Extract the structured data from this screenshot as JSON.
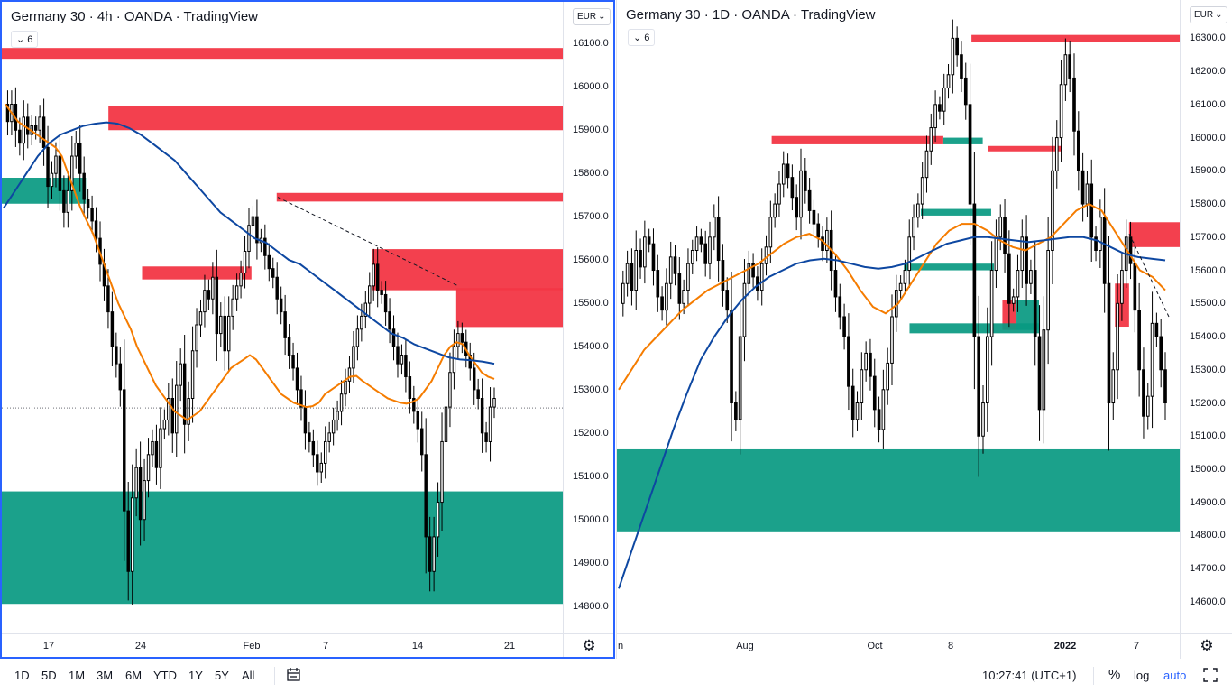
{
  "left_chart": {
    "title": "Germany 30 · 4h · OANDA · TradingView",
    "legend_count": "6",
    "currency": "EUR",
    "price_ticks": [
      "16100.0",
      "16000.0",
      "15900.0",
      "15800.0",
      "15700.0",
      "15600.0",
      "15500.0",
      "15400.0",
      "15300.0",
      "15200.0",
      "15100.0",
      "15000.0",
      "14900.0",
      "14800.0"
    ],
    "time_ticks": [
      "17",
      "24",
      "Feb",
      "7",
      "14",
      "21"
    ],
    "settings_icon": "gear-icon",
    "chart_data": {
      "type": "candlestick",
      "ylim": [
        14770,
        16130
      ],
      "close_path": [
        15960,
        15920,
        15960,
        15900,
        15870,
        15930,
        15890,
        15910,
        15900,
        15930,
        15860,
        15770,
        15800,
        15840,
        15760,
        15710,
        15760,
        15840,
        15870,
        15800,
        15740,
        15720,
        15690,
        15650,
        15590,
        15540,
        15480,
        15400,
        15360,
        15300,
        15020,
        14880,
        15050,
        15120,
        15000,
        15090,
        15150,
        15180,
        15120,
        15210,
        15230,
        15280,
        15200,
        15310,
        15360,
        15220,
        15280,
        15390,
        15450,
        15480,
        15530,
        15510,
        15560,
        15430,
        15470,
        15390,
        15470,
        15510,
        15540,
        15570,
        15620,
        15680,
        15700,
        15640,
        15650,
        15610,
        15580,
        15560,
        15510,
        15480,
        15420,
        15380,
        15350,
        15300,
        15260,
        15200,
        15180,
        15150,
        15110,
        15130,
        15180,
        15200,
        15230,
        15250,
        15290,
        15320,
        15350,
        15400,
        15440,
        15470,
        15500,
        15540,
        15590,
        15530,
        15520,
        15480,
        15440,
        15400,
        15360,
        15380,
        15330,
        15280,
        15250,
        15210,
        15150,
        14960,
        14880,
        14960,
        15040,
        15180,
        15260,
        15340,
        15400,
        15430,
        15410,
        15380,
        15350,
        15300,
        15280,
        15200,
        15180,
        15260,
        15280
      ],
      "ema_orange": [
        15960,
        15940,
        15920,
        15910,
        15900,
        15890,
        15880,
        15870,
        15860,
        15840,
        15800,
        15760,
        15720,
        15690,
        15660,
        15620,
        15580,
        15540,
        15500,
        15470,
        15440,
        15400,
        15370,
        15340,
        15310,
        15290,
        15270,
        15250,
        15240,
        15230,
        15240,
        15250,
        15270,
        15290,
        15310,
        15330,
        15350,
        15360,
        15370,
        15380,
        15370,
        15350,
        15330,
        15310,
        15290,
        15280,
        15270,
        15265,
        15260,
        15262,
        15270,
        15290,
        15300,
        15310,
        15320,
        15330,
        15332,
        15320,
        15310,
        15300,
        15290,
        15280,
        15275,
        15270,
        15268,
        15272,
        15280,
        15300,
        15320,
        15350,
        15380,
        15400,
        15410,
        15405,
        15380,
        15360,
        15340,
        15330,
        15325
      ],
      "ema_blue": [
        15720,
        15760,
        15800,
        15840,
        15870,
        15890,
        15900,
        15910,
        15915,
        15918,
        15915,
        15905,
        15890,
        15870,
        15850,
        15830,
        15800,
        15770,
        15740,
        15710,
        15690,
        15670,
        15650,
        15640,
        15620,
        15600,
        15590,
        15570,
        15550,
        15530,
        15510,
        15490,
        15470,
        15450,
        15430,
        15420,
        15405,
        15395,
        15385,
        15375,
        15370,
        15368,
        15365,
        15360
      ],
      "zones": [
        {
          "kind": "supply",
          "from": 16090,
          "to": 16065,
          "start": 0.0
        },
        {
          "kind": "supply",
          "from": 15955,
          "to": 15900,
          "start": 0.19
        },
        {
          "kind": "demand",
          "from": 15790,
          "to": 15730,
          "start": 0.0,
          "end": 0.15
        },
        {
          "kind": "supply",
          "from": 15755,
          "to": 15735,
          "start": 0.49
        },
        {
          "kind": "supply",
          "from": 15625,
          "to": 15530,
          "start": 0.66
        },
        {
          "kind": "supply",
          "from": 15535,
          "to": 15445,
          "start": 0.81
        },
        {
          "kind": "supply",
          "from": 15585,
          "to": 15555,
          "start": 0.25,
          "end": 0.445
        },
        {
          "kind": "demand",
          "from": 15065,
          "to": 14805,
          "start": 0.0
        }
      ],
      "last_price": 15258
    }
  },
  "right_chart": {
    "title": "Germany 30 · 1D · OANDA · TradingView",
    "legend_count": "6",
    "currency": "EUR",
    "price_ticks": [
      "16300.0",
      "16200.0",
      "16100.0",
      "16000.0",
      "15900.0",
      "15800.0",
      "15700.0",
      "15600.0",
      "15500.0",
      "15400.0",
      "15300.0",
      "15200.0",
      "15100.0",
      "15000.0",
      "14900.0",
      "14800.0",
      "14700.0",
      "14600.0"
    ],
    "time_ticks": [
      "n",
      "Aug",
      "Oct",
      "8",
      "2022",
      "7"
    ],
    "settings_icon": "gear-icon",
    "chart_data": {
      "type": "candlestick",
      "ylim": [
        14570,
        16320
      ],
      "close_path": [
        15500,
        15560,
        15620,
        15540,
        15660,
        15610,
        15700,
        15680,
        15600,
        15520,
        15480,
        15560,
        15640,
        15590,
        15500,
        15540,
        15620,
        15660,
        15700,
        15680,
        15620,
        15700,
        15760,
        15630,
        15540,
        15480,
        15200,
        15150,
        15400,
        15560,
        15620,
        15580,
        15540,
        15620,
        15670,
        15760,
        15800,
        15860,
        15920,
        15880,
        15820,
        15760,
        15900,
        15840,
        15780,
        15740,
        15700,
        15660,
        15720,
        15600,
        15520,
        15460,
        15400,
        15250,
        15150,
        15200,
        15300,
        15350,
        15280,
        15180,
        15120,
        15240,
        15320,
        15460,
        15540,
        15560,
        15600,
        15700,
        15760,
        15800,
        15880,
        15960,
        16030,
        16100,
        16080,
        16150,
        16190,
        16300,
        16250,
        16180,
        16100,
        15800,
        15400,
        15100,
        15200,
        15400,
        15600,
        15700,
        15760,
        15650,
        15500,
        15520,
        15600,
        15700,
        15560,
        15600,
        15400,
        15180,
        15420,
        15660,
        15900,
        16000,
        16160,
        16250,
        16180,
        16020,
        15900,
        15800,
        15860,
        15700,
        15660,
        15760,
        15560,
        15200,
        15300,
        15500,
        15600,
        15700,
        15620,
        15480,
        15300,
        15160,
        15220,
        15440,
        15400,
        15300,
        15200
      ],
      "ema_orange": [
        15240,
        15300,
        15360,
        15400,
        15440,
        15480,
        15510,
        15540,
        15560,
        15580,
        15600,
        15620,
        15650,
        15680,
        15700,
        15710,
        15690,
        15650,
        15600,
        15540,
        15490,
        15470,
        15500,
        15560,
        15620,
        15680,
        15720,
        15740,
        15740,
        15720,
        15690,
        15670,
        15660,
        15680,
        15700,
        15740,
        15780,
        15800,
        15780,
        15720,
        15660,
        15600,
        15580,
        15540
      ],
      "ema_blue": [
        14640,
        14760,
        14880,
        15000,
        15120,
        15230,
        15330,
        15400,
        15460,
        15510,
        15550,
        15580,
        15600,
        15620,
        15630,
        15635,
        15630,
        15620,
        15610,
        15605,
        15610,
        15620,
        15640,
        15660,
        15680,
        15690,
        15700,
        15700,
        15695,
        15690,
        15685,
        15690,
        15695,
        15700,
        15700,
        15690,
        15670,
        15650,
        15640,
        15635,
        15630
      ],
      "zones": [
        {
          "kind": "supply",
          "from": 16310,
          "to": 16290,
          "start": 0.63
        },
        {
          "kind": "supply",
          "from": 16005,
          "to": 15980,
          "start": 0.275,
          "end": 0.58
        },
        {
          "kind": "demand",
          "from": 16000,
          "to": 15980,
          "start": 0.58,
          "end": 0.65
        },
        {
          "kind": "supply",
          "from": 15975,
          "to": 15960,
          "start": 0.66,
          "end": 0.79
        },
        {
          "kind": "demand",
          "from": 15785,
          "to": 15765,
          "start": 0.54,
          "end": 0.665
        },
        {
          "kind": "supply",
          "from": 15745,
          "to": 15670,
          "start": 0.91
        },
        {
          "kind": "demand",
          "from": 15620,
          "to": 15600,
          "start": 0.51,
          "end": 0.67
        },
        {
          "kind": "supply",
          "from": 15560,
          "to": 15430,
          "start": 0.885,
          "end": 0.91
        },
        {
          "kind": "demand",
          "from": 15510,
          "to": 15420,
          "start": 0.71,
          "end": 0.75
        },
        {
          "kind": "supply",
          "from": 15510,
          "to": 15420,
          "start": 0.685,
          "end": 0.71
        },
        {
          "kind": "demand",
          "from": 15440,
          "to": 15410,
          "start": 0.52,
          "end": 0.75
        },
        {
          "kind": "demand",
          "from": 15060,
          "to": 14810,
          "start": 0.0
        }
      ]
    }
  },
  "toolbar": {
    "ranges": [
      "1D",
      "5D",
      "1M",
      "3M",
      "6M",
      "YTD",
      "1Y",
      "5Y",
      "All"
    ],
    "compare_icon": "date-range-icon",
    "clock": "10:27:41 (UTC+1)",
    "percent": "%",
    "log": "log",
    "auto": "auto",
    "fullscreen_icon": "fullscreen-icon",
    "colors": {
      "accent": "#2962ff",
      "supply": "#f23645",
      "demand": "#089981",
      "candle": "#000000",
      "ema_orange": "#f57c00",
      "ema_blue": "#0d47a1"
    }
  }
}
